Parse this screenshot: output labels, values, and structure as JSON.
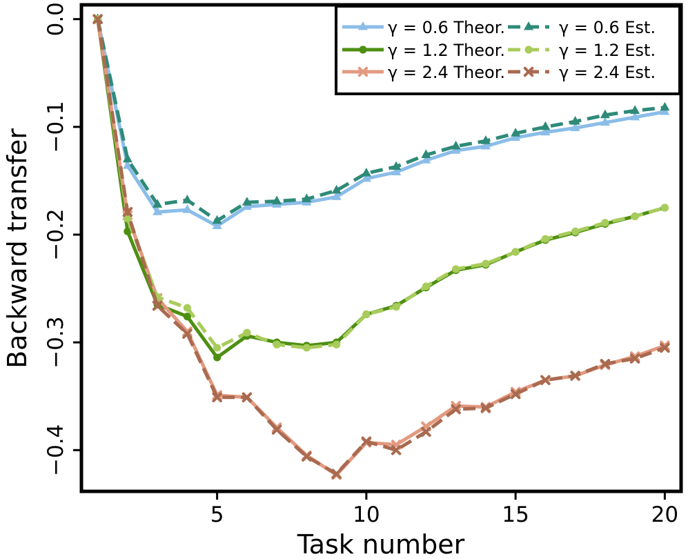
{
  "chart_data": {
    "type": "line",
    "xlabel": "Task number",
    "ylabel": "Backward transfer",
    "xlim": [
      0.5,
      20.5
    ],
    "ylim": [
      -0.437,
      0.012
    ],
    "x_ticks": [
      5,
      10,
      15,
      20
    ],
    "x_tick_labels": [
      "5",
      "10",
      "15",
      "20"
    ],
    "y_ticks": [
      0.0,
      -0.1,
      -0.2,
      -0.3,
      -0.4
    ],
    "y_tick_labels": [
      "0.0",
      "−0.1",
      "−0.2",
      "−0.3",
      "−0.4"
    ],
    "grid": false,
    "legend_position": "top-right",
    "x": [
      1,
      2,
      3,
      4,
      5,
      6,
      7,
      8,
      9,
      10,
      11,
      12,
      13,
      14,
      15,
      16,
      17,
      18,
      19,
      20
    ],
    "series": [
      {
        "name": "γ = 0.6 Theor.",
        "color": "#8bbde8",
        "marker": "triangle",
        "style": "solid",
        "values": [
          0.0,
          -0.136,
          -0.179,
          -0.177,
          -0.192,
          -0.174,
          -0.172,
          -0.17,
          -0.165,
          -0.148,
          -0.142,
          -0.131,
          -0.122,
          -0.118,
          -0.11,
          -0.105,
          -0.101,
          -0.096,
          -0.091,
          -0.086
        ]
      },
      {
        "name": "γ = 1.2 Theor.",
        "color": "#4e8f12",
        "marker": "circle",
        "style": "solid",
        "values": [
          0.0,
          -0.197,
          -0.265,
          -0.276,
          -0.314,
          -0.294,
          -0.3,
          -0.303,
          -0.3,
          -0.274,
          -0.266,
          -0.249,
          -0.233,
          -0.228,
          -0.216,
          -0.205,
          -0.198,
          -0.19,
          -0.183,
          -0.175
        ]
      },
      {
        "name": "γ = 2.4 Theor.",
        "color": "#e39a80",
        "marker": "cross",
        "style": "solid",
        "values": [
          0.0,
          -0.182,
          -0.259,
          -0.29,
          -0.349,
          -0.351,
          -0.379,
          -0.405,
          -0.423,
          -0.393,
          -0.395,
          -0.378,
          -0.359,
          -0.36,
          -0.346,
          -0.335,
          -0.331,
          -0.321,
          -0.313,
          -0.303
        ]
      },
      {
        "name": "γ = 0.6 Est.",
        "color": "#2e8a78",
        "marker": "triangle",
        "style": "dashed",
        "values": [
          0.0,
          -0.13,
          -0.172,
          -0.168,
          -0.187,
          -0.17,
          -0.169,
          -0.167,
          -0.159,
          -0.143,
          -0.137,
          -0.126,
          -0.118,
          -0.113,
          -0.106,
          -0.1,
          -0.095,
          -0.089,
          -0.085,
          -0.082
        ]
      },
      {
        "name": "γ = 1.2 Est.",
        "color": "#a8cc5c",
        "marker": "circle",
        "style": "dashed",
        "values": [
          0.0,
          -0.185,
          -0.258,
          -0.268,
          -0.305,
          -0.291,
          -0.302,
          -0.305,
          -0.302,
          -0.274,
          -0.267,
          -0.248,
          -0.232,
          -0.227,
          -0.216,
          -0.204,
          -0.197,
          -0.189,
          -0.183,
          -0.175
        ]
      },
      {
        "name": "γ = 2.4 Est.",
        "color": "#a96a50",
        "marker": "cross",
        "style": "dashed",
        "values": [
          0.0,
          -0.179,
          -0.266,
          -0.292,
          -0.351,
          -0.351,
          -0.381,
          -0.406,
          -0.422,
          -0.392,
          -0.4,
          -0.383,
          -0.362,
          -0.361,
          -0.348,
          -0.335,
          -0.331,
          -0.32,
          -0.315,
          -0.305
        ]
      }
    ]
  }
}
